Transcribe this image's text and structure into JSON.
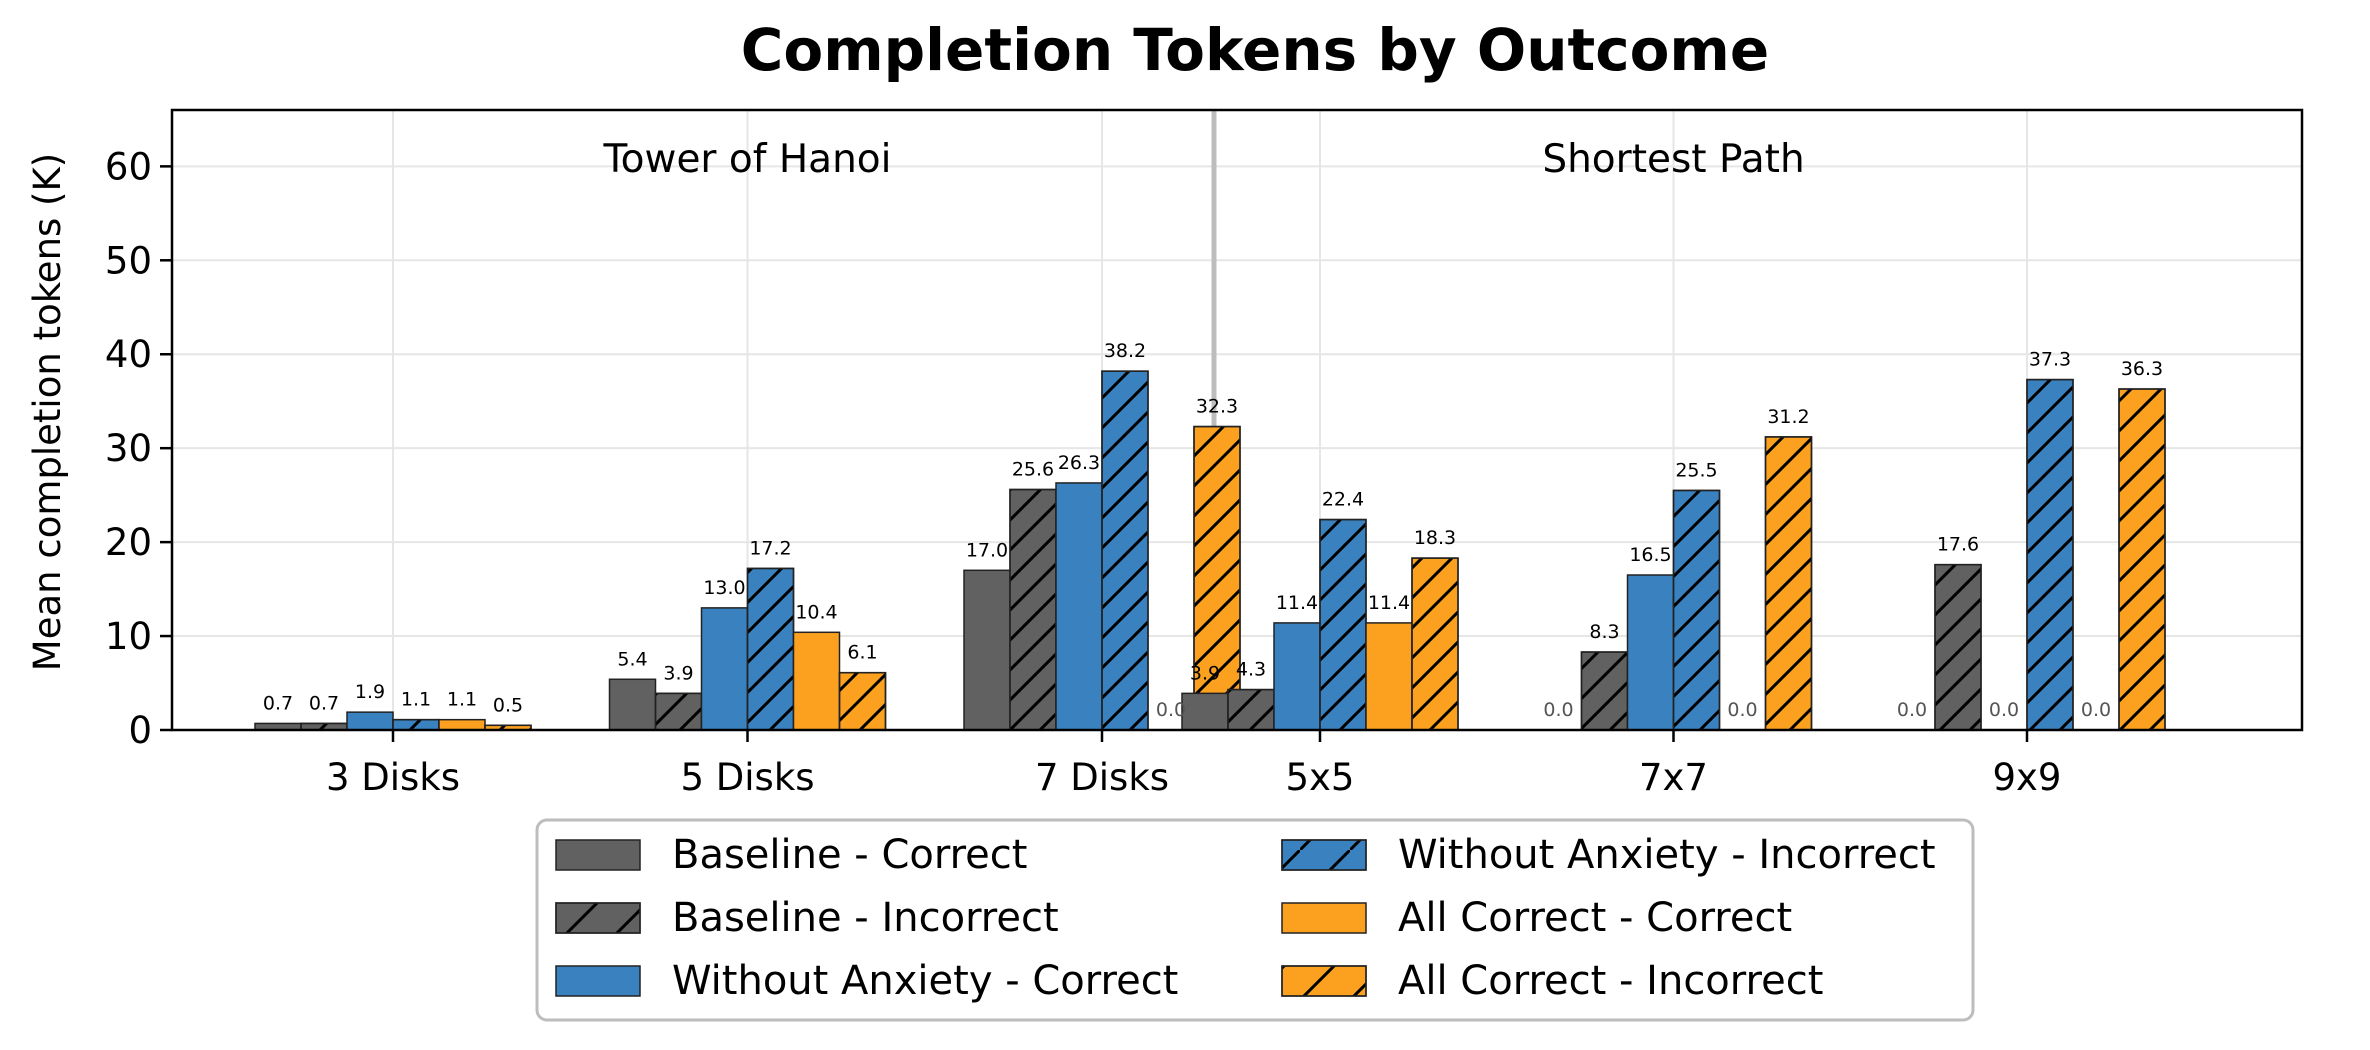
{
  "chart_data": {
    "type": "bar",
    "title": "Completion Tokens by Outcome",
    "ylabel": "Mean completion tokens (K)",
    "xlabel": "",
    "ylim": [
      0,
      66
    ],
    "yticks": [
      0,
      10,
      20,
      30,
      40,
      50,
      60
    ],
    "grid": true,
    "legend_position": "bottom-center",
    "panels": [
      {
        "label": "Tower of Hanoi",
        "categories": [
          0,
          1,
          2
        ]
      },
      {
        "label": "Shortest Path",
        "categories": [
          3,
          4,
          5
        ]
      }
    ],
    "categories": [
      "3 Disks",
      "5 Disks",
      "7 Disks",
      "5x5",
      "7x7",
      "9x9"
    ],
    "series": [
      {
        "name": "Baseline - Correct",
        "color": "#616161",
        "hatch": false,
        "values": [
          0.7,
          5.4,
          17.0,
          3.9,
          0.0,
          0.0
        ]
      },
      {
        "name": "Baseline - Incorrect",
        "color": "#616161",
        "hatch": true,
        "values": [
          0.7,
          3.9,
          25.6,
          4.3,
          8.3,
          17.6
        ]
      },
      {
        "name": "Without Anxiety - Correct",
        "color": "#3a82bf",
        "hatch": false,
        "values": [
          1.9,
          13.0,
          26.3,
          11.4,
          16.5,
          0.0
        ]
      },
      {
        "name": "Without Anxiety - Incorrect",
        "color": "#3a82bf",
        "hatch": true,
        "values": [
          1.1,
          17.2,
          38.2,
          22.4,
          25.5,
          37.3
        ]
      },
      {
        "name": "All Correct - Correct",
        "color": "#fba11f",
        "hatch": false,
        "values": [
          1.1,
          10.4,
          0.0,
          11.4,
          0.0,
          0.0
        ]
      },
      {
        "name": "All Correct - Incorrect",
        "color": "#fba11f",
        "hatch": true,
        "values": [
          0.5,
          6.1,
          32.3,
          18.3,
          31.2,
          36.3
        ]
      }
    ],
    "value_labels": [
      [
        "0.7",
        "5.4",
        "17.0",
        "3.9",
        "0.0",
        "0.0"
      ],
      [
        "0.7",
        "3.9",
        "25.6",
        "4.3",
        "8.3",
        "17.6"
      ],
      [
        "1.9",
        "13.0",
        "26.3",
        "11.4",
        "16.5",
        "0.0"
      ],
      [
        "1.1",
        "17.2",
        "38.2",
        "22.4",
        "25.5",
        "37.3"
      ],
      [
        "1.1",
        "10.4",
        "0.0",
        "11.4",
        "0.0",
        "0.0"
      ],
      [
        "0.5",
        "6.1",
        "32.3",
        "18.3",
        "31.2",
        "36.3"
      ]
    ],
    "legend_order": [
      0,
      3,
      1,
      4,
      2,
      5
    ]
  }
}
